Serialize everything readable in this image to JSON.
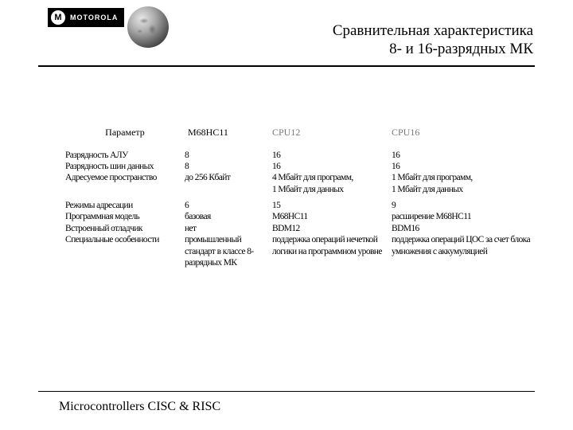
{
  "logo": {
    "brand": "MOTOROLA",
    "mark": "M"
  },
  "title": {
    "line1": "Сравнительная характеристика",
    "line2": "8- и 16-разрядных МК"
  },
  "table": {
    "headers": {
      "param": "Параметр",
      "c1": "M68HC11",
      "c2": "CPU12",
      "c3": "CPU16"
    },
    "rows": [
      {
        "param": "Разрядность АЛУ",
        "c1": "8",
        "c2": "16",
        "c3": "16"
      },
      {
        "param": "Разрядность шин данных",
        "c1": "8",
        "c2": "16",
        "c3": "16"
      },
      {
        "param": "Адресуемое пространство",
        "c1": "до 256 Кбайт",
        "c2": "4 Мбайт для программ,\n1 Мбайт для данных",
        "c3": "1 Мбайт для программ,\n1 Мбайт для данных"
      },
      {
        "param": "Режимы адресации",
        "c1": "6",
        "c2": "15",
        "c3": "9"
      },
      {
        "param": "Программная модель",
        "c1": "базовая",
        "c2": "M68HC11",
        "c3": "расширение M68HC11"
      },
      {
        "param": "Встроенный отладчик",
        "c1": "нет",
        "c2": "BDM12",
        "c3": "BDM16"
      },
      {
        "param": "Специальные особенности",
        "c1": "промышленный стандарт в классе 8-разрядных МК",
        "c2": "поддержка операций нечеткой логики на программном уровне",
        "c3": "поддержка операций ЦОС за счет блока умножения с аккумуляцией"
      }
    ]
  },
  "footer": "Microcontrollers CISC & RISC"
}
